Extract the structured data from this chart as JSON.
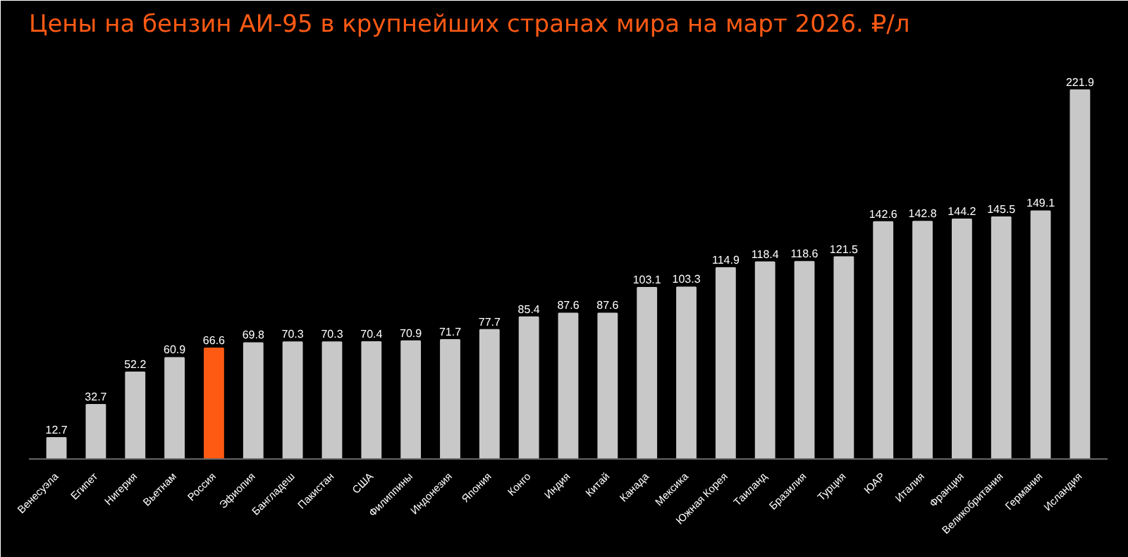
{
  "chart_data": {
    "type": "bar",
    "title": "Цены на бензин АИ-95 в крупнейших странах мира на март 2026. ₽/л",
    "categories": [
      "Венесуэла",
      "Египет",
      "Нигерия",
      "Вьетнам",
      "Россия",
      "Эфиопия",
      "Бангладеш",
      "Пакистан",
      "США",
      "Филиппины",
      "Индонезия",
      "Япония",
      "Конго",
      "Индия",
      "Китай",
      "Канада",
      "Мексика",
      "Южная Корея",
      "Таиланд",
      "Бразилия",
      "Турция",
      "ЮАР",
      "Италия",
      "Франция",
      "Великобритания",
      "Германия",
      "Исландия"
    ],
    "values": [
      12.7,
      32.7,
      52.2,
      60.9,
      66.6,
      69.8,
      70.3,
      70.3,
      70.4,
      70.9,
      71.7,
      77.7,
      85.4,
      87.6,
      87.6,
      103.1,
      103.3,
      114.9,
      118.4,
      118.6,
      121.5,
      142.6,
      142.8,
      144.2,
      145.5,
      149.1,
      221.9
    ],
    "colors": [
      "#c8c8c8",
      "#c8c8c8",
      "#c8c8c8",
      "#c8c8c8",
      "#ff5a14",
      "#c8c8c8",
      "#c8c8c8",
      "#c8c8c8",
      "#c8c8c8",
      "#c8c8c8",
      "#c8c8c8",
      "#c8c8c8",
      "#c8c8c8",
      "#c8c8c8",
      "#c8c8c8",
      "#c8c8c8",
      "#c8c8c8",
      "#c8c8c8",
      "#c8c8c8",
      "#c8c8c8",
      "#c8c8c8",
      "#c8c8c8",
      "#c8c8c8",
      "#c8c8c8",
      "#c8c8c8",
      "#c8c8c8",
      "#c8c8c8"
    ],
    "data_labels": true
  }
}
